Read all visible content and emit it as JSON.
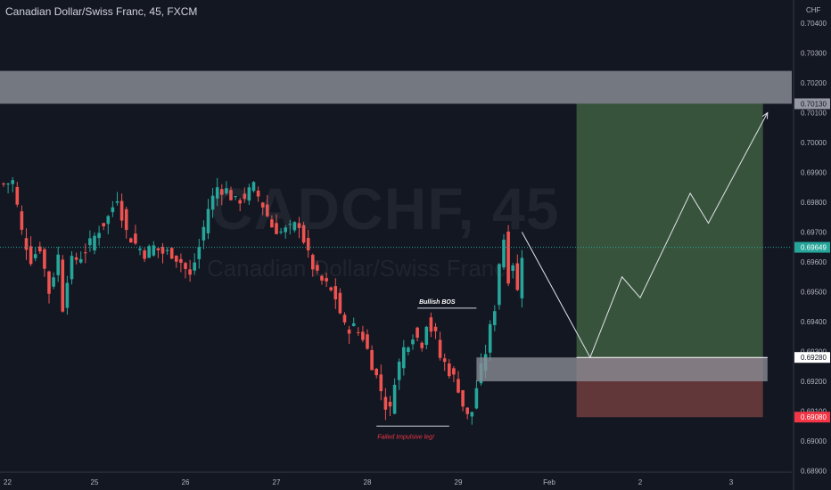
{
  "header": {
    "title": "Canadian Dollar/Swiss Franc, 45, FXCM"
  },
  "watermark": {
    "symbol": "CADCHF, 45",
    "name": "Canadian Dollar/Swiss Franc"
  },
  "colors": {
    "background": "#131722",
    "up": "#26a69a",
    "down": "#ef5350",
    "zone": "#8a8d96",
    "target": "#3d5a3f",
    "stop": "#6b3b3c",
    "path": "#e0e3eb",
    "current": "#26a69a",
    "red_label": "#f23645"
  },
  "chart_data": {
    "type": "candlestick",
    "symbol": "CADCHF",
    "interval": "45",
    "currency": "CHF",
    "y_axis": {
      "ylim": [
        0.6884,
        0.70485
      ],
      "ticks": [
        "0.70400",
        "0.70300",
        "0.70200",
        "0.70100",
        "0.70000",
        "0.69900",
        "0.69800",
        "0.69700",
        "0.69600",
        "0.69500",
        "0.69400",
        "0.69300",
        "0.69200",
        "0.69100",
        "0.69000",
        "0.68900"
      ],
      "tick_values": [
        0.704,
        0.703,
        0.702,
        0.701,
        0.7,
        0.699,
        0.698,
        0.697,
        0.696,
        0.695,
        0.694,
        0.693,
        0.692,
        0.691,
        0.69,
        0.689
      ]
    },
    "x_axis": {
      "labels": [
        "22",
        "25",
        "26",
        "27",
        "28",
        "29",
        "Feb",
        "2",
        "3"
      ],
      "label_index": [
        0,
        20,
        40,
        60,
        80,
        100,
        120,
        140,
        160
      ]
    },
    "price_labels": [
      {
        "text": "0.70130",
        "value": 0.7013,
        "style": "zone"
      },
      {
        "text": "0.69649",
        "value": 0.69649,
        "style": "current"
      },
      {
        "text": "0.69280",
        "value": 0.6928,
        "style": "white"
      },
      {
        "text": "0.69080",
        "value": 0.6908,
        "style": "red"
      }
    ],
    "anchors": [
      [
        0,
        0.6986
      ],
      [
        2,
        0.6987
      ],
      [
        4,
        0.697
      ],
      [
        6,
        0.6961
      ],
      [
        8,
        0.6965
      ],
      [
        10,
        0.695
      ],
      [
        12,
        0.6962
      ],
      [
        13,
        0.6945
      ],
      [
        14,
        0.6955
      ],
      [
        15,
        0.696
      ],
      [
        17,
        0.6962
      ],
      [
        19,
        0.6966
      ],
      [
        21,
        0.6971
      ],
      [
        23,
        0.6975
      ],
      [
        25,
        0.6982
      ],
      [
        27,
        0.697
      ],
      [
        29,
        0.6966
      ],
      [
        31,
        0.6963
      ],
      [
        33,
        0.6965
      ],
      [
        35,
        0.6963
      ],
      [
        37,
        0.6963
      ],
      [
        39,
        0.696
      ],
      [
        41,
        0.6955
      ],
      [
        43,
        0.6965
      ],
      [
        45,
        0.6978
      ],
      [
        47,
        0.6985
      ],
      [
        49,
        0.6984
      ],
      [
        51,
        0.698
      ],
      [
        53,
        0.6982
      ],
      [
        55,
        0.6985
      ],
      [
        57,
        0.6979
      ],
      [
        59,
        0.6972
      ],
      [
        61,
        0.697
      ],
      [
        63,
        0.6971
      ],
      [
        65,
        0.6973
      ],
      [
        67,
        0.6962
      ],
      [
        69,
        0.6955
      ],
      [
        71,
        0.6952
      ],
      [
        73,
        0.6948
      ],
      [
        75,
        0.6938
      ],
      [
        77,
        0.6938
      ],
      [
        79,
        0.6935
      ],
      [
        81,
        0.6926
      ],
      [
        83,
        0.6917
      ],
      [
        84,
        0.6912
      ],
      [
        85,
        0.691
      ],
      [
        86,
        0.6921
      ],
      [
        88,
        0.6931
      ],
      [
        90,
        0.6936
      ],
      [
        92,
        0.6933
      ],
      [
        93,
        0.694
      ],
      [
        95,
        0.6935
      ],
      [
        96,
        0.6928
      ],
      [
        97,
        0.6926
      ],
      [
        99,
        0.6921
      ],
      [
        100,
        0.6918
      ],
      [
        101,
        0.6912
      ],
      [
        102,
        0.6908
      ],
      [
        103,
        0.691
      ],
      [
        104,
        0.6918
      ],
      [
        106,
        0.693
      ],
      [
        108,
        0.6945
      ],
      [
        109,
        0.696
      ],
      [
        110,
        0.6968
      ],
      [
        111,
        0.6955
      ],
      [
        112,
        0.696
      ],
      [
        113,
        0.695
      ],
      [
        114,
        0.6963
      ]
    ],
    "annotations": {
      "upper_zone": {
        "top": 0.7024,
        "bottom": 0.7013
      },
      "demand_zone": {
        "top": 0.6928,
        "bottom": 0.692,
        "from_index": 104,
        "to_index": 168
      },
      "position": {
        "entry": 0.6928,
        "target": 0.7013,
        "stop": 0.6908,
        "from_index": 126,
        "to_index": 167
      },
      "bos_line": {
        "value": 0.69445,
        "from_index": 91,
        "to_index": 104,
        "label": "Bullish BOS"
      },
      "low_line": {
        "value": 0.6905,
        "from_index": 82,
        "to_index": 98,
        "label": "Failed Impulsive leg!"
      },
      "projection": [
        [
          114,
          0.697
        ],
        [
          129,
          0.6928
        ],
        [
          136,
          0.6955
        ],
        [
          140,
          0.6948
        ],
        [
          151,
          0.6983
        ],
        [
          155,
          0.6973
        ],
        [
          168,
          0.701
        ]
      ],
      "current_price": 0.69649
    }
  }
}
